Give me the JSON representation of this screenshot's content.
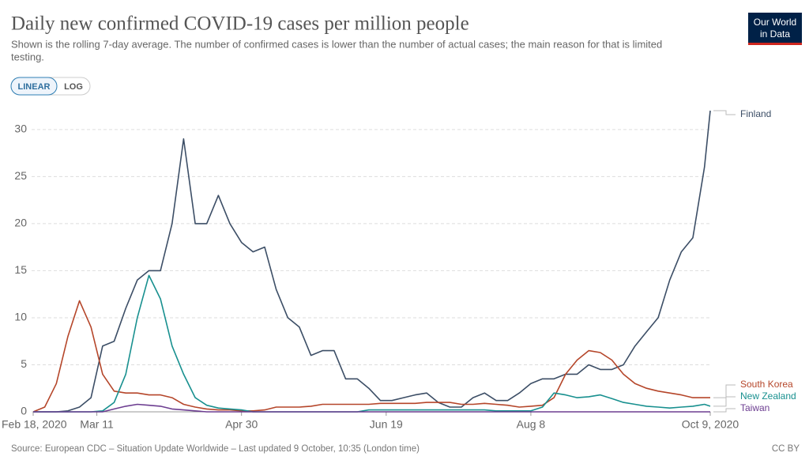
{
  "chart_data": {
    "type": "line",
    "title": "Daily new confirmed COVID-19 cases per million people",
    "subtitle": [
      "Shown is the rolling 7-day average. The number of confirmed cases is lower than the number of actual cases; the main reason for that is limited",
      "testing."
    ],
    "buttons": [
      "LINEAR",
      "LOG"
    ],
    "logo": [
      "Our World",
      "in Data"
    ],
    "source": "Source: European CDC – Situation Update Worldwide – Last updated 9 October, 10:35 (London time)",
    "license": "CC BY",
    "x": [
      "2020-02-18",
      "2020-02-22",
      "2020-02-26",
      "2020-03-01",
      "2020-03-05",
      "2020-03-09",
      "2020-03-13",
      "2020-03-17",
      "2020-03-21",
      "2020-03-25",
      "2020-03-29",
      "2020-04-02",
      "2020-04-06",
      "2020-04-10",
      "2020-04-14",
      "2020-04-18",
      "2020-04-22",
      "2020-04-26",
      "2020-04-30",
      "2020-05-04",
      "2020-05-08",
      "2020-05-12",
      "2020-05-16",
      "2020-05-20",
      "2020-05-24",
      "2020-05-28",
      "2020-06-01",
      "2020-06-05",
      "2020-06-09",
      "2020-06-13",
      "2020-06-17",
      "2020-06-21",
      "2020-06-25",
      "2020-06-29",
      "2020-07-03",
      "2020-07-07",
      "2020-07-11",
      "2020-07-15",
      "2020-07-19",
      "2020-07-23",
      "2020-07-27",
      "2020-07-31",
      "2020-08-04",
      "2020-08-08",
      "2020-08-12",
      "2020-08-16",
      "2020-08-20",
      "2020-08-24",
      "2020-08-28",
      "2020-09-01",
      "2020-09-05",
      "2020-09-09",
      "2020-09-13",
      "2020-09-17",
      "2020-09-21",
      "2020-09-25",
      "2020-09-29",
      "2020-10-03",
      "2020-10-07",
      "2020-10-09"
    ],
    "series": [
      {
        "name": "Finland",
        "color": "#3c4e66",
        "values": [
          0,
          0,
          0,
          0.1,
          0.5,
          1.5,
          7,
          7.5,
          11,
          14,
          15,
          15,
          20,
          29,
          20,
          20,
          23,
          20,
          18,
          17,
          17.5,
          13,
          10,
          9,
          6,
          6.5,
          6.5,
          3.5,
          3.5,
          2.5,
          1.2,
          1.2,
          1.5,
          1.8,
          2,
          1,
          0.5,
          0.5,
          1.5,
          2,
          1.2,
          1.2,
          2,
          3,
          3.5,
          3.5,
          4,
          4,
          5,
          4.5,
          4.5,
          5,
          7,
          8.5,
          10,
          14,
          17,
          18.5,
          26,
          32
        ]
      },
      {
        "name": "South Korea",
        "color": "#b5462a",
        "values": [
          0,
          0.5,
          3,
          8,
          11.8,
          9,
          4,
          2.2,
          2,
          2,
          1.8,
          1.8,
          1.5,
          0.8,
          0.5,
          0.3,
          0.2,
          0.2,
          0.1,
          0.1,
          0.2,
          0.5,
          0.5,
          0.5,
          0.6,
          0.8,
          0.8,
          0.8,
          0.8,
          0.8,
          0.9,
          0.9,
          0.9,
          0.9,
          1,
          1,
          1,
          0.8,
          0.8,
          0.9,
          0.8,
          0.7,
          0.5,
          0.6,
          0.7,
          1.5,
          4,
          5.5,
          6.5,
          6.3,
          5.5,
          4,
          3,
          2.5,
          2.2,
          2,
          1.8,
          1.5,
          1.5,
          1.5
        ]
      },
      {
        "name": "New Zealand",
        "color": "#18908f",
        "values": [
          0,
          0,
          0,
          0,
          0,
          0,
          0.1,
          1,
          4,
          10,
          14.5,
          12,
          7,
          4,
          1.5,
          0.7,
          0.4,
          0.3,
          0.2,
          0,
          0,
          0,
          0,
          0,
          0,
          0,
          0,
          0,
          0,
          0.2,
          0.2,
          0.2,
          0.2,
          0.2,
          0.2,
          0.2,
          0.2,
          0.2,
          0.2,
          0.2,
          0.1,
          0.1,
          0.1,
          0.1,
          0.5,
          2,
          1.8,
          1.5,
          1.6,
          1.8,
          1.4,
          1,
          0.8,
          0.6,
          0.5,
          0.4,
          0.5,
          0.6,
          0.8,
          0.6
        ]
      },
      {
        "name": "Taiwan",
        "color": "#6d3e91",
        "values": [
          0,
          0,
          0,
          0,
          0,
          0,
          0,
          0.3,
          0.6,
          0.8,
          0.7,
          0.6,
          0.3,
          0.2,
          0.1,
          0,
          0,
          0,
          0,
          0,
          0,
          0,
          0,
          0,
          0,
          0,
          0,
          0,
          0,
          0,
          0,
          0,
          0,
          0,
          0,
          0,
          0,
          0,
          0,
          0,
          0,
          0,
          0,
          0,
          0,
          0,
          0,
          0,
          0,
          0,
          0,
          0,
          0,
          0,
          0,
          0,
          0,
          0,
          0,
          0
        ]
      }
    ],
    "xlim": [
      "2020-02-18",
      "2020-10-09"
    ],
    "xticks": [
      {
        "value": "2020-02-18",
        "label": "Feb 18, 2020"
      },
      {
        "value": "2020-03-11",
        "label": "Mar 11"
      },
      {
        "value": "2020-04-30",
        "label": "Apr 30"
      },
      {
        "value": "2020-06-19",
        "label": "Jun 19"
      },
      {
        "value": "2020-08-08",
        "label": "Aug 8"
      },
      {
        "value": "2020-10-09",
        "label": "Oct 9, 2020"
      }
    ],
    "ylim": [
      0,
      32
    ],
    "yticks": [
      0,
      5,
      10,
      15,
      20,
      25,
      30
    ],
    "grid": true
  }
}
